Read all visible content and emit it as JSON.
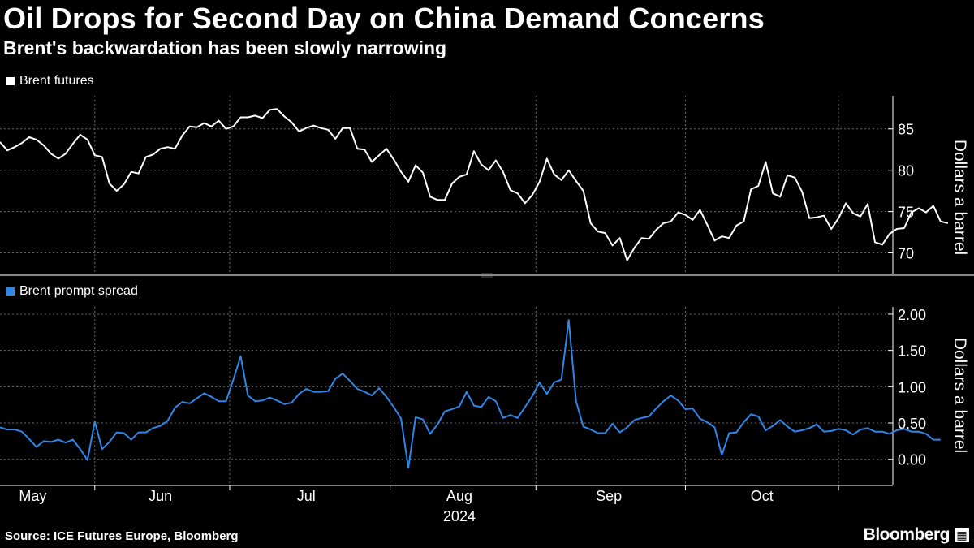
{
  "title": "Oil Drops for Second Day on China Demand Concerns",
  "subtitle": "Brent's backwardation has been slowly narrowing",
  "source": "Source: ICE Futures Europe, Bloomberg",
  "brand": "Bloomberg",
  "brand_icon": "terminal-icon",
  "colors": {
    "background": "#000000",
    "brent": "#ffffff",
    "spread": "#2e86e8",
    "grid": "#777777"
  },
  "chart_data": [
    {
      "type": "line",
      "panel": "top",
      "legend": "Brent futures",
      "ylabel": "Dollars a barrel",
      "ylim": [
        67.5,
        89
      ],
      "yticks": [
        70,
        75,
        80,
        85
      ],
      "ytick_labels": [
        "70",
        "75",
        "80",
        "85"
      ],
      "x_range": [
        0,
        120
      ],
      "series": [
        {
          "name": "Brent futures",
          "values": [
            83.4,
            82.4,
            82.8,
            83.3,
            84.0,
            83.7,
            83.0,
            82.0,
            81.4,
            82.0,
            83.2,
            84.3,
            83.7,
            81.8,
            81.6,
            78.4,
            77.5,
            78.3,
            79.8,
            79.6,
            81.6,
            81.9,
            82.6,
            82.8,
            82.6,
            84.2,
            85.3,
            85.2,
            85.7,
            85.3,
            86.0,
            85.0,
            85.3,
            86.4,
            86.4,
            86.6,
            86.3,
            87.3,
            87.4,
            86.5,
            85.8,
            84.7,
            85.1,
            85.4,
            85.1,
            84.9,
            83.8,
            85.1,
            85.1,
            82.6,
            82.5,
            81.0,
            81.8,
            82.6,
            81.3,
            79.8,
            78.6,
            80.6,
            79.7,
            76.8,
            76.4,
            76.4,
            78.4,
            79.2,
            79.5,
            82.3,
            80.7,
            80.0,
            81.2,
            79.8,
            77.6,
            77.2,
            76.0,
            77.0,
            78.6,
            81.4,
            79.5,
            78.8,
            80.0,
            78.7,
            77.5,
            73.6,
            72.6,
            72.4,
            70.9,
            71.8,
            69.1,
            70.6,
            71.8,
            71.7,
            72.8,
            73.6,
            73.8,
            74.9,
            74.6,
            74.0,
            75.2,
            73.4,
            71.5,
            72.0,
            71.8,
            73.3,
            73.8,
            77.7,
            78.1,
            81.0,
            77.2,
            76.8,
            79.4,
            79.1,
            77.4,
            74.2,
            74.3,
            74.5,
            72.9,
            74.2,
            76.0,
            74.8,
            74.4,
            75.9,
            71.3,
            71.0,
            72.3,
            72.9,
            73.0,
            74.9,
            75.4,
            74.9,
            75.7,
            73.8,
            73.6
          ]
        }
      ]
    },
    {
      "type": "line",
      "panel": "bottom",
      "legend": "Brent prompt spread",
      "ylabel": "Dollars a barrel",
      "ylim": [
        -0.35,
        2.1
      ],
      "yticks": [
        0,
        0.5,
        1,
        1.5,
        2
      ],
      "ytick_labels": [
        "0.00",
        "0.50",
        "1.00",
        "1.50",
        "2.00"
      ],
      "x_range": [
        0,
        120
      ],
      "series": [
        {
          "name": "Brent prompt spread",
          "values": [
            0.44,
            0.41,
            0.41,
            0.38,
            0.28,
            0.17,
            0.25,
            0.24,
            0.27,
            0.23,
            0.27,
            0.14,
            -0.01,
            0.52,
            0.14,
            0.24,
            0.37,
            0.36,
            0.27,
            0.37,
            0.37,
            0.43,
            0.46,
            0.53,
            0.71,
            0.79,
            0.77,
            0.84,
            0.91,
            0.86,
            0.8,
            0.8,
            1.1,
            1.42,
            0.88,
            0.8,
            0.81,
            0.85,
            0.81,
            0.76,
            0.78,
            0.9,
            0.97,
            0.93,
            0.93,
            0.94,
            1.11,
            1.18,
            1.08,
            0.97,
            0.93,
            0.88,
            0.98,
            0.86,
            0.72,
            0.56,
            -0.12,
            0.58,
            0.55,
            0.35,
            0.48,
            0.66,
            0.69,
            0.73,
            0.93,
            0.74,
            0.72,
            0.86,
            0.8,
            0.57,
            0.61,
            0.57,
            0.72,
            0.87,
            1.06,
            0.9,
            1.06,
            1.1,
            1.92,
            0.8,
            0.45,
            0.41,
            0.36,
            0.36,
            0.49,
            0.37,
            0.44,
            0.54,
            0.57,
            0.59,
            0.7,
            0.8,
            0.88,
            0.81,
            0.69,
            0.7,
            0.56,
            0.51,
            0.44,
            0.06,
            0.36,
            0.37,
            0.51,
            0.62,
            0.59,
            0.4,
            0.46,
            0.54,
            0.45,
            0.38,
            0.4,
            0.43,
            0.48,
            0.38,
            0.39,
            0.42,
            0.4,
            0.34,
            0.41,
            0.43,
            0.38,
            0.38,
            0.35,
            0.4,
            0.42,
            0.38,
            0.38,
            0.35,
            0.27,
            0.27
          ]
        }
      ]
    }
  ],
  "x_axis": {
    "months": [
      {
        "label": "May",
        "pos": 4.5
      },
      {
        "label": "Jun",
        "pos": 22
      },
      {
        "label": "Jul",
        "pos": 42
      },
      {
        "label": "Aug",
        "pos": 63
      },
      {
        "label": "Sep",
        "pos": 83.5
      },
      {
        "label": "Oct",
        "pos": 104.5
      }
    ],
    "month_boundaries": [
      13,
      31.5,
      53.5,
      73.5,
      94,
      115
    ],
    "year": "2024"
  }
}
